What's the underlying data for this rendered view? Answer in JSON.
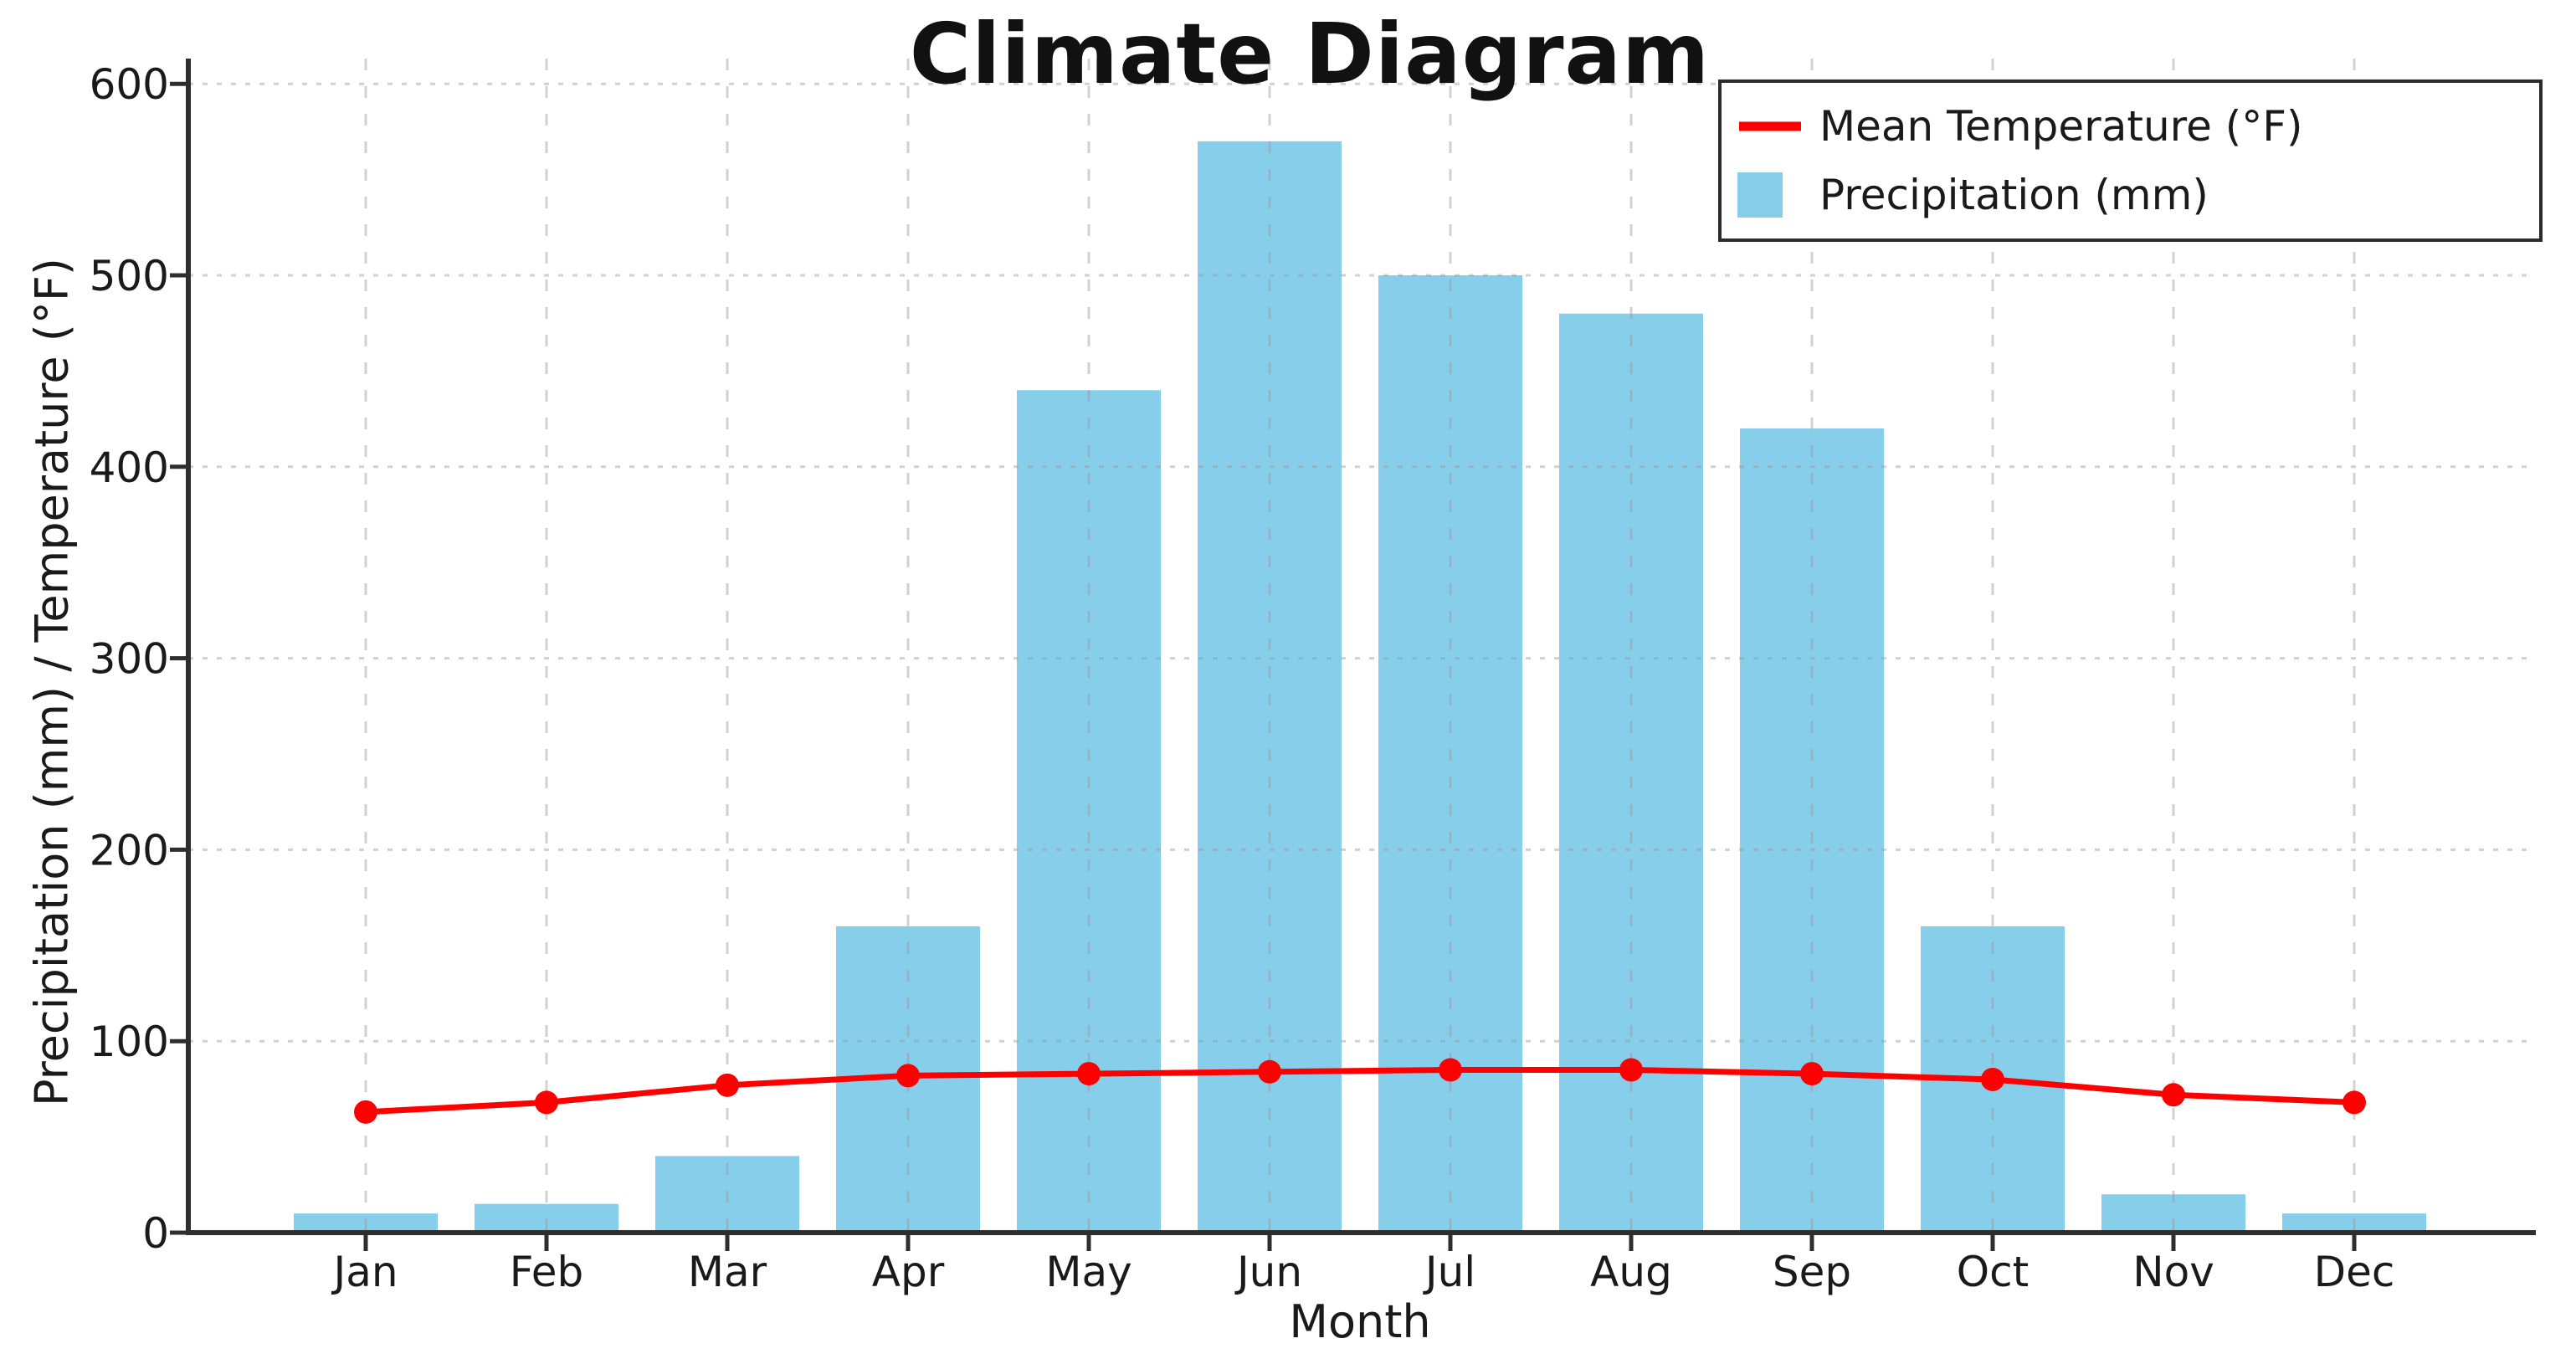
{
  "chart_data": {
    "type": "bar+line",
    "title": "Climate Diagram",
    "xlabel": "Month",
    "ylabel": "Precipitation (mm) / Temperature (°F)",
    "categories": [
      "Jan",
      "Feb",
      "Mar",
      "Apr",
      "May",
      "Jun",
      "Jul",
      "Aug",
      "Sep",
      "Oct",
      "Nov",
      "Dec"
    ],
    "yticks": [
      0,
      100,
      200,
      300,
      400,
      500,
      600
    ],
    "ylim": [
      0,
      613
    ],
    "grid": true,
    "legend_position": "upper right",
    "series": [
      {
        "name": "Mean Temperature (°F)",
        "type": "line",
        "marker": "circle",
        "color": "#ff0000",
        "values": [
          63,
          68,
          77,
          82,
          83,
          84,
          85,
          85,
          83,
          80,
          72,
          68
        ]
      },
      {
        "name": "Precipitation (mm)",
        "type": "bar",
        "color": "#87ceeb",
        "values": [
          10,
          15,
          40,
          160,
          440,
          570,
          500,
          480,
          420,
          160,
          20,
          10
        ]
      }
    ]
  },
  "colors": {
    "background": "#ffffff",
    "spine": "#2e2e2e",
    "grid": "#9a9a9a",
    "text": "#1a1a1a",
    "temperature_line": "#ff0000",
    "precipitation_bar": "#87ceeb"
  }
}
